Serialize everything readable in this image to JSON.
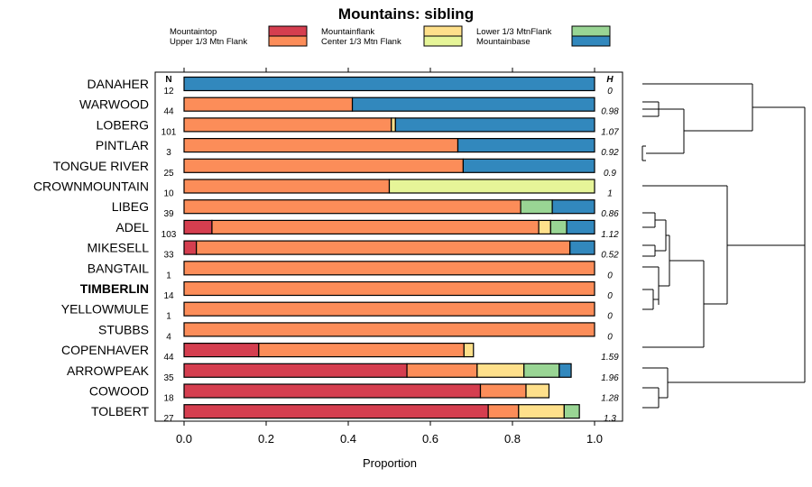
{
  "chart_data": {
    "type": "bar",
    "stacked": true,
    "orientation": "horizontal",
    "title": "Mountains: sibling",
    "xlabel": "Proportion",
    "xlim": [
      0,
      1
    ],
    "xticks": [
      "0.0",
      "0.2",
      "0.4",
      "0.6",
      "0.8",
      "1.0"
    ],
    "n_header": "N",
    "h_header": "H",
    "categories_legend": [
      {
        "name": "Mountaintop",
        "color": "#d53e4f"
      },
      {
        "name": "Upper 1/3 Mtn Flank",
        "color": "#fc8d59"
      },
      {
        "name": "Mountainflank",
        "color": "#fee08b"
      },
      {
        "name": "Center 1/3 Mtn Flank",
        "color": "#e6f598"
      },
      {
        "name": "Lower 1/3 MtnFlank",
        "color": "#99d594"
      },
      {
        "name": "Mountainbase",
        "color": "#3288bd"
      }
    ],
    "rows": [
      {
        "label": "DANAHER",
        "n": "12",
        "h": "0",
        "bold": false,
        "segments": [
          0,
          0,
          0,
          0,
          0,
          1.0
        ]
      },
      {
        "label": "WARWOOD",
        "n": "44",
        "h": "0.98",
        "bold": false,
        "segments": [
          0,
          0.41,
          0,
          0,
          0,
          0.59
        ]
      },
      {
        "label": "LOBERG",
        "n": "101",
        "h": "1.07",
        "bold": false,
        "segments": [
          0,
          0.505,
          0.01,
          0,
          0,
          0.485
        ]
      },
      {
        "label": "PINTLAR",
        "n": "3",
        "h": "0.92",
        "bold": false,
        "segments": [
          0,
          0.667,
          0,
          0,
          0,
          0.333
        ]
      },
      {
        "label": "TONGUE RIVER",
        "n": "25",
        "h": "0.9",
        "bold": false,
        "segments": [
          0,
          0.68,
          0,
          0,
          0,
          0.32
        ]
      },
      {
        "label": "CROWNMOUNTAIN",
        "n": "10",
        "h": "1",
        "bold": false,
        "segments": [
          0,
          0.5,
          0,
          0.5,
          0,
          0
        ]
      },
      {
        "label": "LIBEG",
        "n": "39",
        "h": "0.86",
        "bold": false,
        "segments": [
          0,
          0.82,
          0,
          0,
          0.077,
          0.103
        ]
      },
      {
        "label": "ADEL",
        "n": "103",
        "h": "1.12",
        "bold": false,
        "segments": [
          0.068,
          0.796,
          0.029,
          0,
          0.039,
          0.068
        ]
      },
      {
        "label": "MIKESELL",
        "n": "33",
        "h": "0.52",
        "bold": false,
        "segments": [
          0.03,
          0.91,
          0,
          0,
          0,
          0.06
        ]
      },
      {
        "label": "BANGTAIL",
        "n": "1",
        "h": "0",
        "bold": false,
        "segments": [
          0,
          1.0,
          0,
          0,
          0,
          0
        ]
      },
      {
        "label": "TIMBERLIN",
        "n": "14",
        "h": "0",
        "bold": true,
        "segments": [
          0,
          1.0,
          0,
          0,
          0,
          0
        ]
      },
      {
        "label": "YELLOWMULE",
        "n": "1",
        "h": "0",
        "bold": false,
        "segments": [
          0,
          1.0,
          0,
          0,
          0,
          0
        ]
      },
      {
        "label": "STUBBS",
        "n": "4",
        "h": "0",
        "bold": false,
        "segments": [
          0,
          1.0,
          0,
          0,
          0,
          0
        ]
      },
      {
        "label": "COPENHAVER",
        "n": "44",
        "h": "1.59",
        "bold": false,
        "segments": [
          0.182,
          0.5,
          0.023,
          0,
          0,
          0
        ]
      },
      {
        "label": "ARROWPEAK",
        "n": "35",
        "h": "1.96",
        "bold": false,
        "segments": [
          0.543,
          0.171,
          0.114,
          0,
          0.086,
          0.029
        ]
      },
      {
        "label": "COWOOD",
        "n": "18",
        "h": "1.28",
        "bold": false,
        "segments": [
          0.722,
          0.111,
          0.056,
          0,
          0,
          0
        ]
      },
      {
        "label": "TOLBERT",
        "n": "27",
        "h": "1.3",
        "bold": false,
        "segments": [
          0.741,
          0.074,
          0.111,
          0,
          0.037,
          0
        ]
      }
    ]
  }
}
